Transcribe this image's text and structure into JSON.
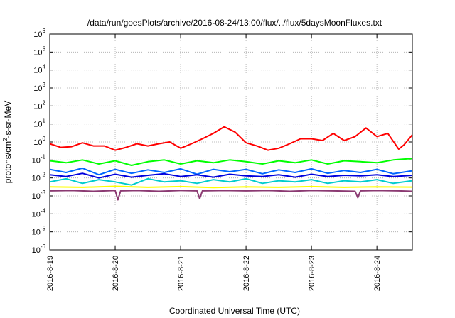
{
  "chart_data": {
    "type": "line",
    "title": "/data/run/goesPlots/archive/2016-08-24/13:00/flux/../flux/5daysMoonFluxes.txt",
    "xlabel": "Coordinated Universal Time (UTC)",
    "ylabel": {
      "pre": "protons/cm",
      "exp": "2",
      "post": "-s-sr-MeV"
    },
    "x_range": [
      "2016-08-19",
      "2016-08-24 13:00"
    ],
    "y_scale": "log",
    "ylim": [
      1e-06,
      1000000.0
    ],
    "x_ticks": [
      "2016-8-19",
      "2016-8-20",
      "2016-8-21",
      "2016-8-22",
      "2016-8-23",
      "2016-8-24"
    ],
    "y_ticks": [
      {
        "value": 1e-06,
        "base": "10",
        "exp": "-6"
      },
      {
        "value": 1e-05,
        "base": "10",
        "exp": "-5"
      },
      {
        "value": 0.0001,
        "base": "10",
        "exp": "-4"
      },
      {
        "value": 0.001,
        "base": "10",
        "exp": "-3"
      },
      {
        "value": 0.01,
        "base": "10",
        "exp": "-2"
      },
      {
        "value": 0.1,
        "base": "10",
        "exp": "-1"
      },
      {
        "value": 1,
        "base": "10",
        "exp": "0"
      },
      {
        "value": 10,
        "base": "10",
        "exp": "1"
      },
      {
        "value": 100,
        "base": "10",
        "exp": "2"
      },
      {
        "value": 1000,
        "base": "10",
        "exp": "3"
      },
      {
        "value": 10000,
        "base": "10",
        "exp": "4"
      },
      {
        "value": 100000,
        "base": "10",
        "exp": "5"
      },
      {
        "value": 1000000,
        "base": "10",
        "exp": "6"
      }
    ],
    "grid": true,
    "legend": "none",
    "series": [
      {
        "color": "#ff0000",
        "x": [
          "2016-08-19 00:00",
          "2016-08-19 04:00",
          "2016-08-19 08:00",
          "2016-08-19 12:00",
          "2016-08-19 16:00",
          "2016-08-19 20:00",
          "2016-08-20 00:00",
          "2016-08-20 04:00",
          "2016-08-20 08:00",
          "2016-08-20 12:00",
          "2016-08-20 16:00",
          "2016-08-20 20:00",
          "2016-08-21 00:00",
          "2016-08-21 04:00",
          "2016-08-21 08:00",
          "2016-08-21 12:00",
          "2016-08-21 16:00",
          "2016-08-21 20:00",
          "2016-08-22 00:00",
          "2016-08-22 04:00",
          "2016-08-22 08:00",
          "2016-08-22 12:00",
          "2016-08-22 16:00",
          "2016-08-22 20:00",
          "2016-08-23 00:00",
          "2016-08-23 04:00",
          "2016-08-23 08:00",
          "2016-08-23 12:00",
          "2016-08-23 16:00",
          "2016-08-23 20:00",
          "2016-08-24 00:00",
          "2016-08-24 04:00",
          "2016-08-24 08:00",
          "2016-08-24 10:00",
          "2016-08-24 13:00"
        ],
        "y": [
          0.8,
          0.5,
          0.55,
          0.9,
          0.6,
          0.6,
          0.35,
          0.5,
          0.8,
          0.6,
          0.8,
          1.0,
          0.45,
          0.8,
          1.5,
          3.0,
          7.0,
          3.5,
          0.9,
          0.6,
          0.35,
          0.45,
          0.8,
          1.5,
          1.5,
          1.2,
          3.0,
          1.2,
          2.0,
          6.0,
          2.0,
          3.0,
          0.4,
          0.7,
          2.5
        ]
      },
      {
        "color": "#00ff00",
        "x": [
          "2016-08-19 00:00",
          "2016-08-19 06:00",
          "2016-08-19 12:00",
          "2016-08-19 18:00",
          "2016-08-20 00:00",
          "2016-08-20 06:00",
          "2016-08-20 12:00",
          "2016-08-20 18:00",
          "2016-08-21 00:00",
          "2016-08-21 06:00",
          "2016-08-21 12:00",
          "2016-08-21 18:00",
          "2016-08-22 00:00",
          "2016-08-22 06:00",
          "2016-08-22 12:00",
          "2016-08-22 18:00",
          "2016-08-23 00:00",
          "2016-08-23 06:00",
          "2016-08-23 12:00",
          "2016-08-23 18:00",
          "2016-08-24 00:00",
          "2016-08-24 06:00",
          "2016-08-24 13:00"
        ],
        "y": [
          0.09,
          0.07,
          0.1,
          0.06,
          0.09,
          0.05,
          0.08,
          0.1,
          0.06,
          0.09,
          0.07,
          0.1,
          0.08,
          0.06,
          0.09,
          0.07,
          0.1,
          0.06,
          0.09,
          0.08,
          0.07,
          0.1,
          0.12
        ]
      },
      {
        "color": "#00cccc",
        "x": [
          "2016-08-19 00:00",
          "2016-08-19 06:00",
          "2016-08-19 12:00",
          "2016-08-19 18:00",
          "2016-08-20 00:00",
          "2016-08-20 06:00",
          "2016-08-20 12:00",
          "2016-08-20 18:00",
          "2016-08-21 00:00",
          "2016-08-21 06:00",
          "2016-08-21 12:00",
          "2016-08-21 18:00",
          "2016-08-22 00:00",
          "2016-08-22 06:00",
          "2016-08-22 12:00",
          "2016-08-22 18:00",
          "2016-08-23 00:00",
          "2016-08-23 06:00",
          "2016-08-23 12:00",
          "2016-08-23 18:00",
          "2016-08-24 00:00",
          "2016-08-24 06:00",
          "2016-08-24 13:00"
        ],
        "y": [
          0.006,
          0.009,
          0.005,
          0.008,
          0.006,
          0.004,
          0.009,
          0.006,
          0.007,
          0.005,
          0.008,
          0.006,
          0.009,
          0.005,
          0.007,
          0.006,
          0.008,
          0.005,
          0.007,
          0.006,
          0.008,
          0.005,
          0.007
        ]
      },
      {
        "color": "#0066ff",
        "x": [
          "2016-08-19 00:00",
          "2016-08-19 06:00",
          "2016-08-19 12:00",
          "2016-08-19 18:00",
          "2016-08-20 00:00",
          "2016-08-20 06:00",
          "2016-08-20 12:00",
          "2016-08-20 18:00",
          "2016-08-21 00:00",
          "2016-08-21 06:00",
          "2016-08-21 12:00",
          "2016-08-21 18:00",
          "2016-08-22 00:00",
          "2016-08-22 06:00",
          "2016-08-22 12:00",
          "2016-08-22 18:00",
          "2016-08-23 00:00",
          "2016-08-23 06:00",
          "2016-08-23 12:00",
          "2016-08-23 18:00",
          "2016-08-24 00:00",
          "2016-08-24 06:00",
          "2016-08-24 13:00"
        ],
        "y": [
          0.03,
          0.02,
          0.035,
          0.015,
          0.03,
          0.018,
          0.028,
          0.02,
          0.032,
          0.016,
          0.03,
          0.022,
          0.03,
          0.017,
          0.028,
          0.02,
          0.032,
          0.018,
          0.026,
          0.02,
          0.03,
          0.017,
          0.025
        ]
      },
      {
        "color": "#0000dd",
        "x": [
          "2016-08-19 00:00",
          "2016-08-19 06:00",
          "2016-08-19 12:00",
          "2016-08-19 18:00",
          "2016-08-20 00:00",
          "2016-08-20 06:00",
          "2016-08-20 12:00",
          "2016-08-20 18:00",
          "2016-08-21 00:00",
          "2016-08-21 06:00",
          "2016-08-21 12:00",
          "2016-08-21 18:00",
          "2016-08-22 00:00",
          "2016-08-22 06:00",
          "2016-08-22 12:00",
          "2016-08-22 18:00",
          "2016-08-23 00:00",
          "2016-08-23 06:00",
          "2016-08-23 12:00",
          "2016-08-23 18:00",
          "2016-08-24 00:00",
          "2016-08-24 06:00",
          "2016-08-24 13:00"
        ],
        "y": [
          0.015,
          0.012,
          0.018,
          0.01,
          0.016,
          0.011,
          0.014,
          0.017,
          0.012,
          0.015,
          0.011,
          0.016,
          0.013,
          0.012,
          0.015,
          0.011,
          0.016,
          0.012,
          0.014,
          0.013,
          0.015,
          0.012,
          0.014
        ]
      },
      {
        "color": "#ffff00",
        "x": [
          "2016-08-19 00:00",
          "2016-08-19 12:00",
          "2016-08-20 00:00",
          "2016-08-20 12:00",
          "2016-08-21 00:00",
          "2016-08-21 12:00",
          "2016-08-22 00:00",
          "2016-08-22 12:00",
          "2016-08-23 00:00",
          "2016-08-23 12:00",
          "2016-08-24 00:00",
          "2016-08-24 13:00"
        ],
        "y": [
          0.0032,
          0.003,
          0.0034,
          0.003,
          0.0033,
          0.0029,
          0.0032,
          0.003,
          0.0033,
          0.003,
          0.0032,
          0.0031
        ]
      },
      {
        "color": "#8b3a72",
        "x": [
          "2016-08-19 00:00",
          "2016-08-19 08:00",
          "2016-08-19 16:00",
          "2016-08-20 00:00",
          "2016-08-20 01:00",
          "2016-08-20 02:00",
          "2016-08-20 08:00",
          "2016-08-20 16:00",
          "2016-08-21 00:00",
          "2016-08-21 06:00",
          "2016-08-21 07:00",
          "2016-08-21 08:00",
          "2016-08-21 16:00",
          "2016-08-22 00:00",
          "2016-08-22 08:00",
          "2016-08-22 16:00",
          "2016-08-23 00:00",
          "2016-08-23 08:00",
          "2016-08-23 16:00",
          "2016-08-23 17:00",
          "2016-08-23 18:00",
          "2016-08-24 00:00",
          "2016-08-24 08:00",
          "2016-08-24 13:00"
        ],
        "y": [
          0.0019,
          0.002,
          0.0018,
          0.002,
          0.0006,
          0.0019,
          0.002,
          0.0018,
          0.002,
          0.0019,
          0.0007,
          0.0019,
          0.002,
          0.0019,
          0.002,
          0.0018,
          0.002,
          0.0019,
          0.0018,
          0.0008,
          0.0019,
          0.002,
          0.0019,
          0.0018
        ]
      }
    ]
  }
}
